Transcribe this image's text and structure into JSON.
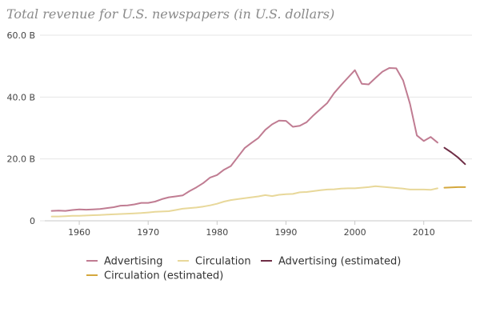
{
  "chart_data": {
    "type": "line",
    "title": "Total revenue for U.S. newspapers (in U.S. dollars)",
    "xlabel": "",
    "ylabel": "",
    "xlim": [
      1955,
      2017
    ],
    "ylim": [
      0,
      60
    ],
    "x_ticks": [
      1960,
      1970,
      1980,
      1990,
      2000,
      2010
    ],
    "y_ticks": [
      {
        "value": 0,
        "label": "0"
      },
      {
        "value": 20,
        "label": "20.0 B"
      },
      {
        "value": 40,
        "label": "40.0 B"
      },
      {
        "value": 60,
        "label": "60.0 B"
      }
    ],
    "grid": {
      "horizontal": true,
      "vertical": false
    },
    "legend_position": "bottom-left",
    "series": [
      {
        "name": "Advertising",
        "color": "#c07c92",
        "x": [
          1956,
          1957,
          1958,
          1959,
          1960,
          1961,
          1962,
          1963,
          1964,
          1965,
          1966,
          1967,
          1968,
          1969,
          1970,
          1971,
          1972,
          1973,
          1974,
          1975,
          1976,
          1977,
          1978,
          1979,
          1980,
          1981,
          1982,
          1983,
          1984,
          1985,
          1986,
          1987,
          1988,
          1989,
          1990,
          1991,
          1992,
          1993,
          1994,
          1995,
          1996,
          1997,
          1998,
          1999,
          2000,
          2001,
          2002,
          2003,
          2004,
          2005,
          2006,
          2007,
          2008,
          2009,
          2010,
          2011,
          2012
        ],
        "values": [
          3.2,
          3.3,
          3.2,
          3.5,
          3.7,
          3.6,
          3.7,
          3.8,
          4.1,
          4.4,
          4.9,
          5.0,
          5.3,
          5.8,
          5.8,
          6.2,
          7.0,
          7.6,
          7.9,
          8.2,
          9.6,
          10.8,
          12.2,
          14.0,
          14.8,
          16.5,
          17.7,
          20.6,
          23.5,
          25.2,
          26.8,
          29.4,
          31.2,
          32.4,
          32.3,
          30.4,
          30.7,
          31.9,
          34.1,
          36.1,
          38.1,
          41.3,
          43.9,
          46.3,
          48.7,
          44.3,
          44.1,
          46.2,
          48.2,
          49.4,
          49.3,
          45.4,
          37.8,
          27.6,
          25.8,
          27.1,
          25.3
        ]
      },
      {
        "name": "Circulation",
        "color": "#e8d89a",
        "x": [
          1956,
          1957,
          1958,
          1959,
          1960,
          1961,
          1962,
          1963,
          1964,
          1965,
          1966,
          1967,
          1968,
          1969,
          1970,
          1971,
          1972,
          1973,
          1974,
          1975,
          1976,
          1977,
          1978,
          1979,
          1980,
          1981,
          1982,
          1983,
          1984,
          1985,
          1986,
          1987,
          1988,
          1989,
          1990,
          1991,
          1992,
          1993,
          1994,
          1995,
          1996,
          1997,
          1998,
          1999,
          2000,
          2001,
          2002,
          2003,
          2004,
          2005,
          2006,
          2007,
          2008,
          2009,
          2010,
          2011,
          2012
        ],
        "values": [
          1.4,
          1.4,
          1.5,
          1.6,
          1.6,
          1.7,
          1.8,
          1.9,
          2.0,
          2.1,
          2.2,
          2.3,
          2.4,
          2.5,
          2.7,
          2.9,
          3.0,
          3.1,
          3.5,
          3.9,
          4.1,
          4.3,
          4.6,
          5.0,
          5.5,
          6.2,
          6.7,
          7.0,
          7.3,
          7.6,
          7.9,
          8.3,
          8.0,
          8.4,
          8.6,
          8.7,
          9.2,
          9.3,
          9.6,
          9.9,
          10.1,
          10.2,
          10.4,
          10.5,
          10.5,
          10.7,
          10.9,
          11.2,
          11.0,
          10.8,
          10.6,
          10.4,
          10.1,
          10.1,
          10.1,
          10.0,
          10.5
        ]
      },
      {
        "name": "Advertising (estimated)",
        "color": "#6e2d45",
        "x": [
          2013,
          2014,
          2015,
          2016
        ],
        "values": [
          23.6,
          22.1,
          20.4,
          18.3
        ]
      },
      {
        "name": "Circulation (estimated)",
        "color": "#d4a83e",
        "x": [
          2013,
          2014,
          2015,
          2016
        ],
        "values": [
          10.7,
          10.8,
          10.9,
          10.9
        ]
      }
    ]
  }
}
